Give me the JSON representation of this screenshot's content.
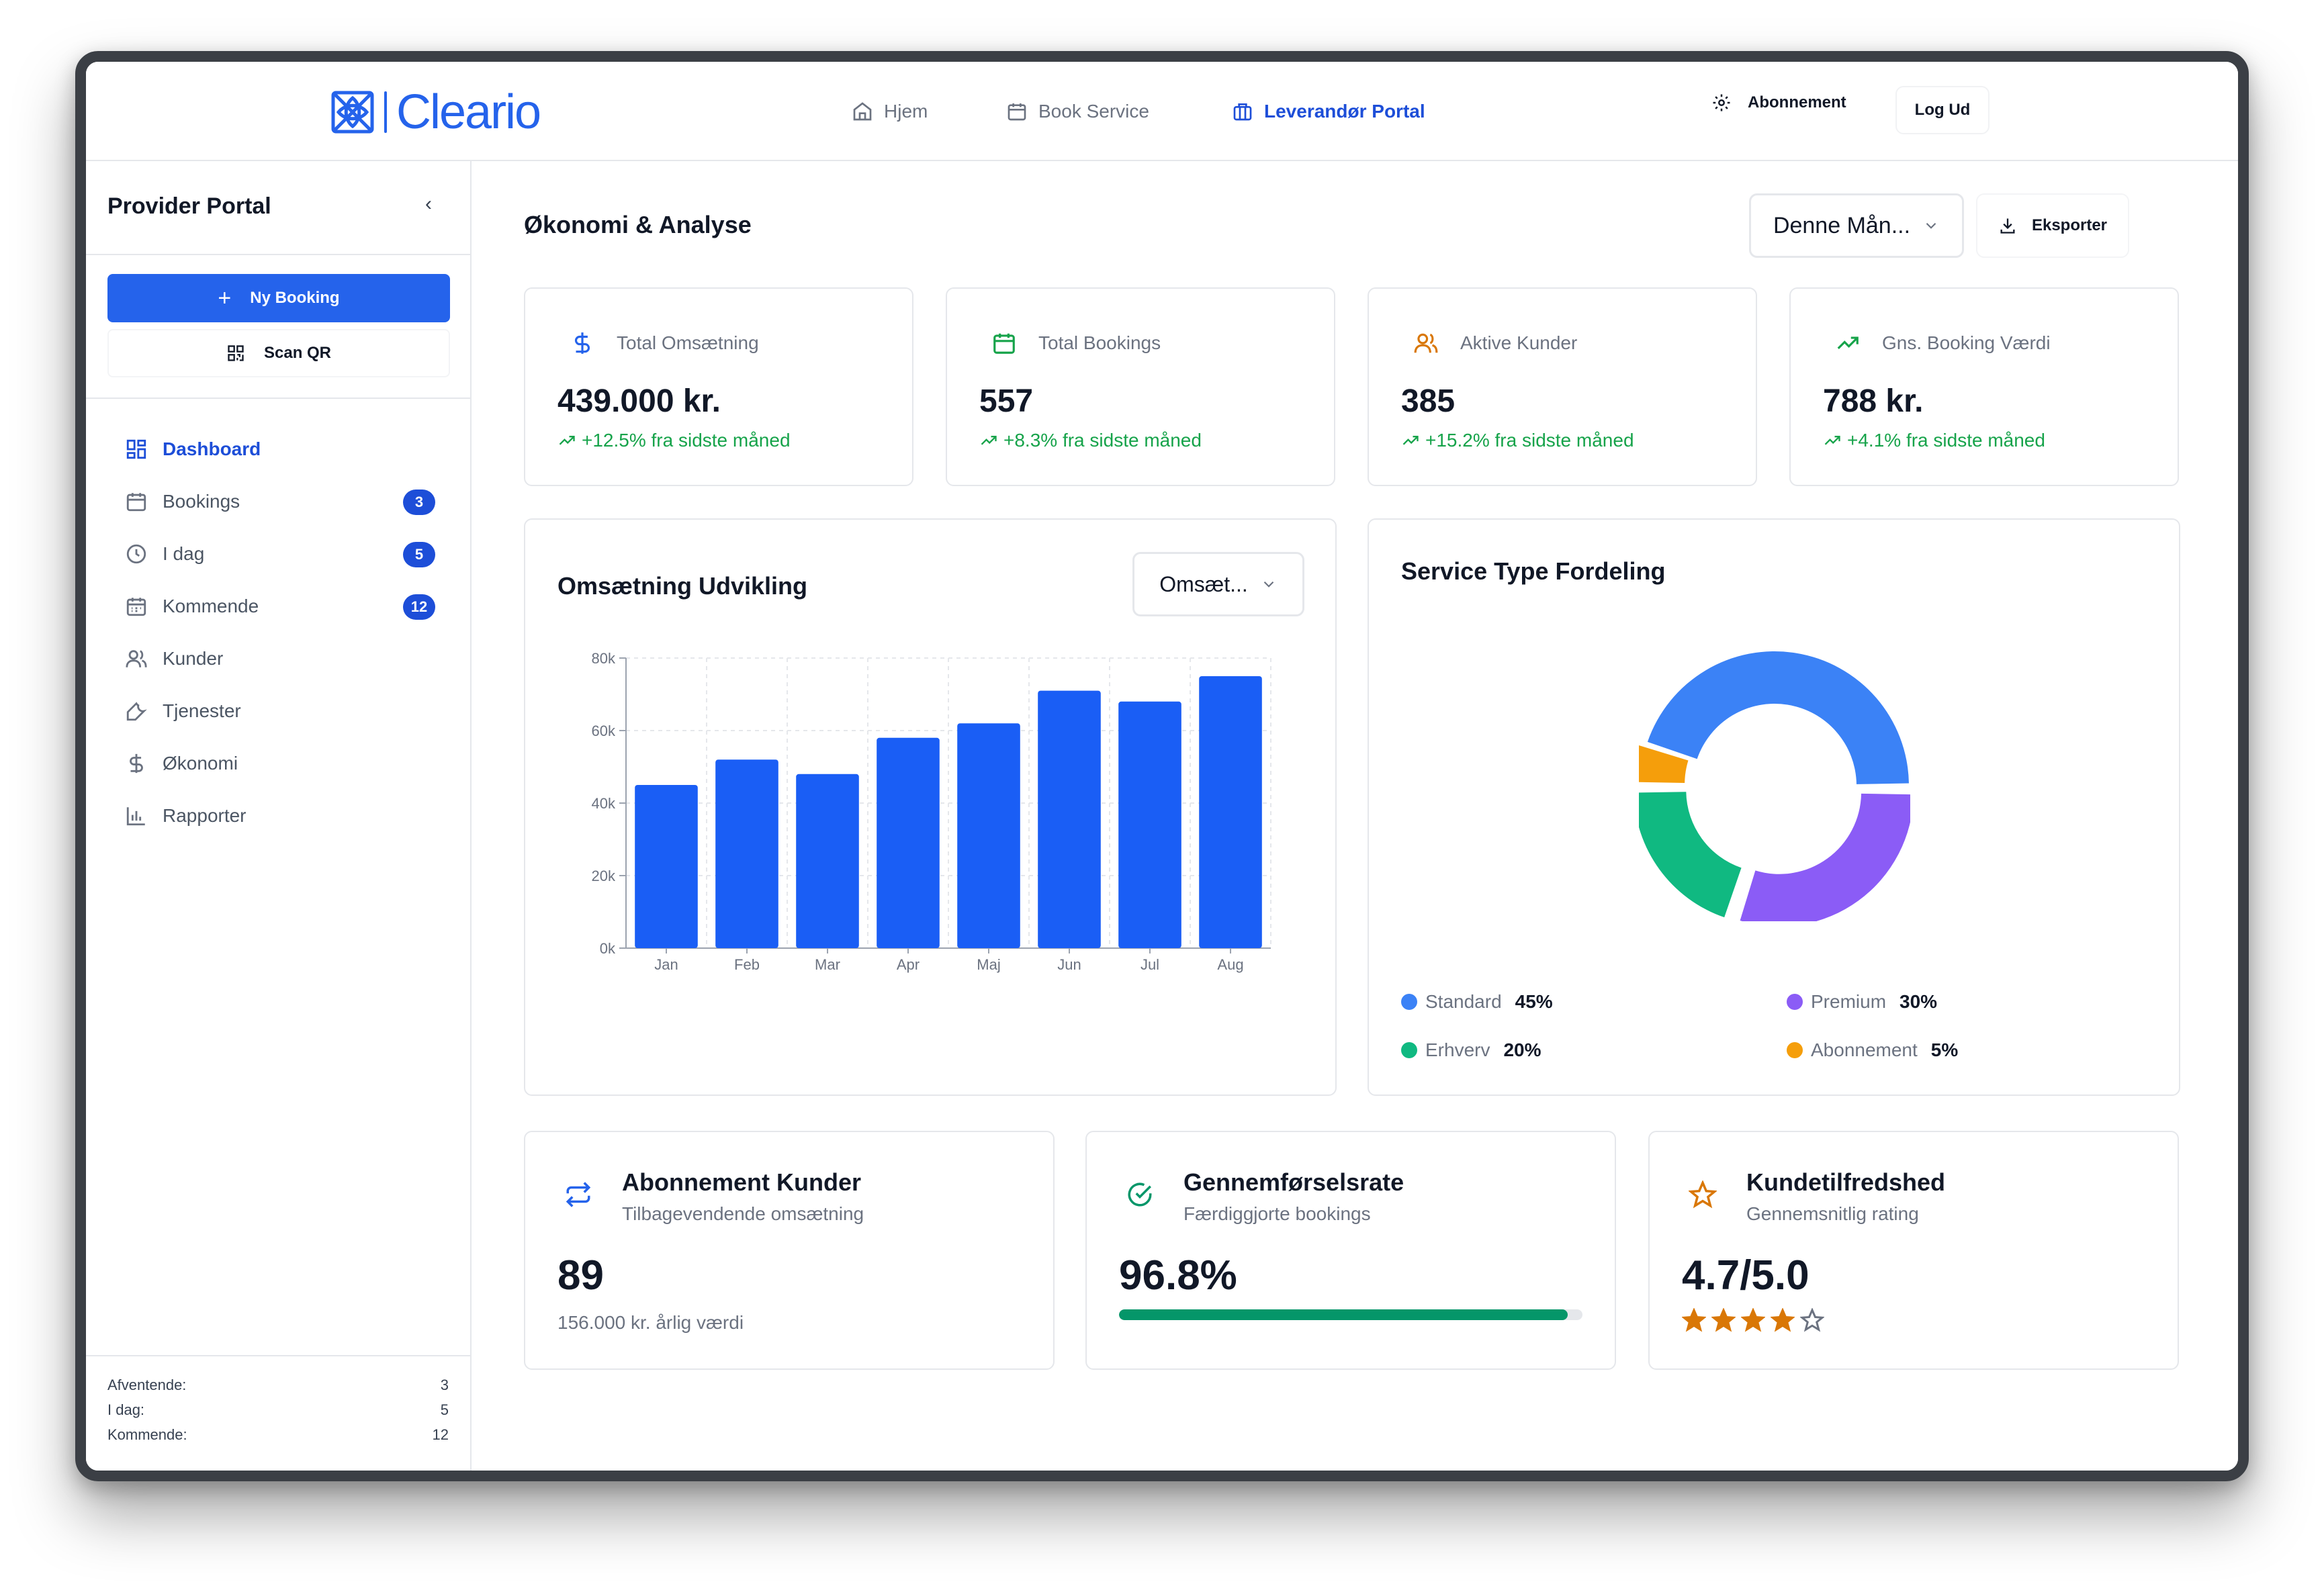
{
  "brand": {
    "name": "Cleario",
    "color": "#2563eb"
  },
  "nav": {
    "home": "Hjem",
    "book": "Book Service",
    "portal": "Leverandør Portal",
    "subscription": "Abonnement",
    "logout": "Log Ud"
  },
  "sidebar": {
    "title": "Provider Portal",
    "new_booking": "Ny Booking",
    "scan_qr": "Scan QR",
    "items": [
      {
        "label": "Dashboard",
        "icon": "grid-icon",
        "active": true
      },
      {
        "label": "Bookings",
        "icon": "calendar-icon",
        "badge": "3"
      },
      {
        "label": "I dag",
        "icon": "clock-icon",
        "badge": "5"
      },
      {
        "label": "Kommende",
        "icon": "calendar-days-icon",
        "badge": "12"
      },
      {
        "label": "Kunder",
        "icon": "users-icon"
      },
      {
        "label": "Tjenester",
        "icon": "wrench-icon"
      },
      {
        "label": "Økonomi",
        "icon": "dollar-icon"
      },
      {
        "label": "Rapporter",
        "icon": "bar-chart-icon"
      }
    ],
    "footer": {
      "pending_label": "Afventende:",
      "pending_value": "3",
      "today_label": "I dag:",
      "today_value": "5",
      "upcoming_label": "Kommende:",
      "upcoming_value": "12"
    }
  },
  "main": {
    "title": "Økonomi & Analyse",
    "period": "Denne Mån...",
    "export": "Eksporter"
  },
  "kpis": [
    {
      "label": "Total Omsætning",
      "value": "439.000 kr.",
      "trend": "+12.5% fra sidste måned",
      "icon": "dollar-icon",
      "color": "#2563eb"
    },
    {
      "label": "Total Bookings",
      "value": "557",
      "trend": "+8.3% fra sidste måned",
      "icon": "calendar-icon",
      "color": "#16a34a"
    },
    {
      "label": "Aktive Kunder",
      "value": "385",
      "trend": "+15.2% fra sidste måned",
      "icon": "users-icon",
      "color": "#d97706"
    },
    {
      "label": "Gns. Booking Værdi",
      "value": "788 kr.",
      "trend": "+4.1% fra sidste måned",
      "icon": "trending-up-icon",
      "color": "#16a34a"
    }
  ],
  "revenue_card": {
    "title": "Omsætning Udvikling",
    "select": "Omsæt..."
  },
  "service_card": {
    "title": "Service Type Fordeling"
  },
  "chart_data": [
    {
      "type": "bar",
      "categories": [
        "Jan",
        "Feb",
        "Mar",
        "Apr",
        "Maj",
        "Jun",
        "Jul",
        "Aug"
      ],
      "values": [
        45000,
        52000,
        48000,
        58000,
        62000,
        71000,
        68000,
        75000
      ],
      "yticks": [
        "0k",
        "20k",
        "40k",
        "60k",
        "80k"
      ],
      "ylim": [
        0,
        80000
      ],
      "grid": true,
      "color": "#1a5ef5"
    },
    {
      "type": "pie",
      "donut": true,
      "series": [
        {
          "name": "Standard",
          "value": 45,
          "label": "45%",
          "color": "#3b82f6"
        },
        {
          "name": "Abonnement",
          "value": 5,
          "label": "5%",
          "color": "#f59e0b"
        },
        {
          "name": "Erhverv",
          "value": 20,
          "label": "20%",
          "color": "#10b981"
        },
        {
          "name": "Premium",
          "value": 30,
          "label": "30%",
          "color": "#8b5cf6"
        }
      ]
    }
  ],
  "bottom_cards": [
    {
      "title": "Abonnement Kunder",
      "subtitle": "Tilbagevendende omsætning",
      "value": "89",
      "note": "156.000 kr. årlig værdi",
      "icon": "repeat-icon"
    },
    {
      "title": "Gennemførselsrate",
      "subtitle": "Færdiggjorte bookings",
      "value": "96.8%",
      "progress": 0.968,
      "icon": "check-circle-icon"
    },
    {
      "title": "Kundetilfredshed",
      "subtitle": "Gennemsnitlig rating",
      "value": "4.7/5.0",
      "rating": 4,
      "rating_max": 5,
      "icon": "star-icon"
    }
  ]
}
